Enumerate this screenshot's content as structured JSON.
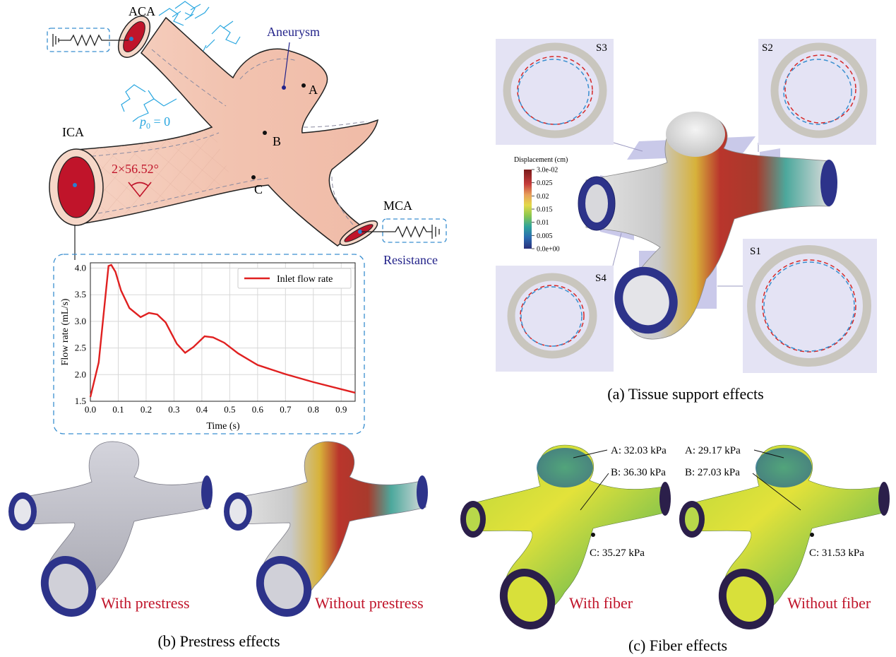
{
  "geometry_panel": {
    "labels": {
      "aca": "ACA",
      "ica": "ICA",
      "mca": "MCA",
      "aneurysm": "Aneurysm",
      "p0_symbol": "p",
      "p0_subscript": "0",
      "p0_rest": " = 0",
      "angle": "2×56.52°",
      "resistance": "Resistance",
      "point_a": "A",
      "point_b": "B",
      "point_c": "C"
    },
    "colors": {
      "vessel_fill": "#f3c9b8",
      "lumen": "#c0142a",
      "support": "#2aa7e0",
      "label_blue": "#23238a",
      "angle_red": "#c0142a"
    }
  },
  "inlet_chart": {
    "chart_data": {
      "type": "line",
      "title": "",
      "xlabel": "Time (s)",
      "ylabel": "Flow rate (mL/s)",
      "xlim": [
        0.0,
        0.95
      ],
      "ylim": [
        1.5,
        4.1
      ],
      "xticks": [
        "0.0",
        "0.1",
        "0.2",
        "0.3",
        "0.4",
        "0.5",
        "0.6",
        "0.7",
        "0.8",
        "0.9"
      ],
      "yticks": [
        "1.5",
        "2.0",
        "2.5",
        "3.0",
        "3.5",
        "4.0"
      ],
      "grid": true,
      "legend_position": "top-right",
      "series": [
        {
          "name": "Inlet flow rate",
          "color": "#e02020",
          "x": [
            0.0,
            0.03,
            0.065,
            0.075,
            0.09,
            0.11,
            0.14,
            0.18,
            0.21,
            0.24,
            0.27,
            0.31,
            0.34,
            0.37,
            0.41,
            0.44,
            0.48,
            0.53,
            0.6,
            0.7,
            0.8,
            0.95
          ],
          "y": [
            1.58,
            2.23,
            4.04,
            4.06,
            3.93,
            3.58,
            3.25,
            3.08,
            3.16,
            3.13,
            2.98,
            2.58,
            2.41,
            2.52,
            2.72,
            2.7,
            2.6,
            2.4,
            2.18,
            2.01,
            1.86,
            1.66
          ]
        }
      ]
    }
  },
  "panel_a": {
    "caption": "(a) Tissue support effects",
    "colorbar_title": "Displacement (cm)",
    "colorbar_ticks": [
      "3.0e-02",
      "0.025",
      "0.02",
      "0.015",
      "0.01",
      "0.005",
      "0.0e+00"
    ],
    "sections": [
      "S3",
      "S2",
      "S4",
      "S1"
    ],
    "dash_colors": [
      "#d62828",
      "#3a8fd0"
    ]
  },
  "panel_b": {
    "caption": "(b) Prestress effects",
    "labels": [
      "With prestress",
      "Without prestress"
    ],
    "label_color": "#c0142a"
  },
  "panel_c": {
    "caption": "(c) Fiber effects",
    "labels": [
      "With fiber",
      "Without fiber"
    ],
    "with_fiber": {
      "a": "A: 32.03 kPa",
      "b": "B: 36.30 kPa",
      "c": "C: 35.27 kPa"
    },
    "without_fiber": {
      "a": "A: 29.17 kPa",
      "b": "B: 27.03 kPa",
      "c": "C: 31.53 kPa"
    }
  }
}
